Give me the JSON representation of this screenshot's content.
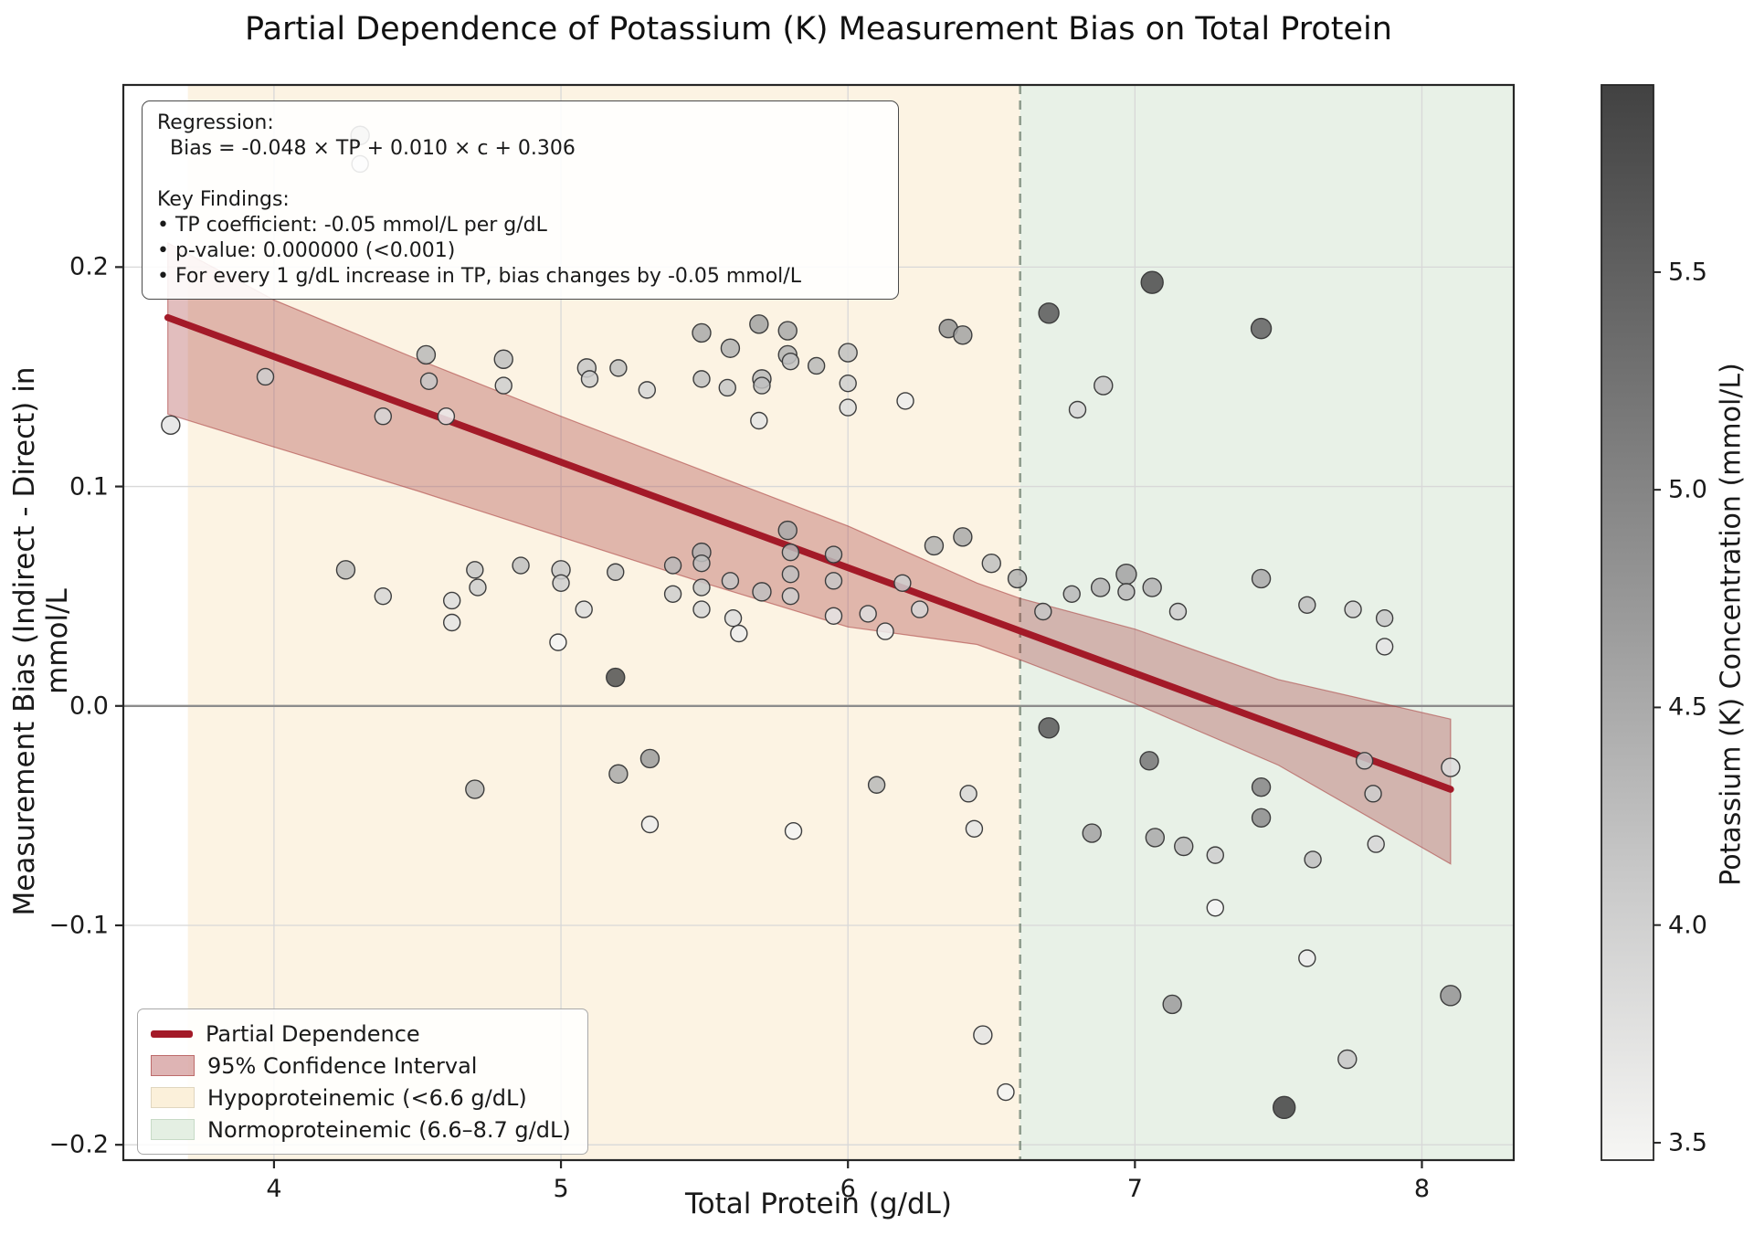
{
  "title": "Partial Dependence of Potassium (K) Measurement Bias on Total Protein",
  "axes": {
    "xlabel": "Total Protein (g/dL)",
    "ylabel": "Measurement Bias (Indirect - Direct) in mmol/L",
    "x_ticks": [
      4,
      5,
      6,
      7,
      8
    ],
    "x_tick_labels": [
      "4",
      "5",
      "6",
      "7",
      "8"
    ],
    "y_ticks": [
      0.2,
      0.1,
      0.0,
      -0.1,
      -0.2
    ],
    "y_tick_labels": [
      "0.2",
      "0.1",
      "0.0",
      "−0.1",
      "−0.2"
    ],
    "grid": true
  },
  "annotation": {
    "lines": [
      "Regression:",
      "  Bias = -0.048 × TP + 0.010 × c + 0.306",
      "",
      "Key Findings:",
      "• TP coefficient: -0.05 mmol/L per g/dL",
      "• p-value: 0.000000 (<0.001)",
      "• For every 1 g/dL increase in TP, bias changes by -0.05 mmol/L"
    ]
  },
  "legend": {
    "items": [
      {
        "label": "Partial Dependence",
        "swatch": "line",
        "color": "#a31a28"
      },
      {
        "label": "95% Confidence Interval",
        "swatch": "patch",
        "color": "rgba(167,58,58,0.38)",
        "border": "rgba(167,58,58,0.6)"
      },
      {
        "label": "Hypoproteinemic (<6.6 g/dL)",
        "swatch": "patch",
        "color": "#fbf0da",
        "border": "#e0d6bf"
      },
      {
        "label": "Normoproteinemic (6.6–8.7 g/dL)",
        "swatch": "patch",
        "color": "#e4efe3",
        "border": "#c7dac6"
      }
    ]
  },
  "colorbar": {
    "label": "Potassium (K) Concentration (mmol/L)",
    "tick_values": [
      5.5,
      5.0,
      4.5,
      4.0,
      3.5
    ],
    "tick_labels": [
      "5.5",
      "5.0",
      "4.5",
      "4.0",
      "3.5"
    ],
    "min": 3.46,
    "max": 5.93,
    "top_color": "#424242",
    "bottom_color": "#f6f6f4"
  },
  "chart_data": {
    "type": "scatter",
    "title": "Partial Dependence of Potassium (K) Measurement Bias on Total Protein",
    "xlabel": "Total Protein (g/dL)",
    "ylabel": "Measurement Bias (Indirect - Direct) in mmol/L",
    "xlim": [
      3.475,
      8.32
    ],
    "ylim": [
      -0.207,
      0.283
    ],
    "zero_line_y": 0.0,
    "threshold_x": 6.6,
    "regions": {
      "hypoproteinemic": {
        "from": 3.7,
        "to": 6.6,
        "color": "#fcf3e3",
        "label": "Hypoproteinemic (<6.6 g/dL)"
      },
      "normoproteinemic": {
        "from": 6.6,
        "to": 8.32,
        "color": "#e8f1e7",
        "label": "Normoproteinemic (6.6–8.7 g/dL)"
      }
    },
    "regression": {
      "slope_per_gdl": -0.048,
      "k_coefficient": 0.01,
      "intercept": 0.306,
      "p_value": "<0.001",
      "line": {
        "x": [
          3.63,
          8.1
        ],
        "y": [
          0.177,
          -0.038
        ]
      }
    },
    "confidence_band": [
      [
        3.63,
        0.133,
        0.211
      ],
      [
        4.0,
        0.118,
        0.185
      ],
      [
        4.5,
        0.098,
        0.158
      ],
      [
        5.0,
        0.077,
        0.132
      ],
      [
        5.5,
        0.056,
        0.107
      ],
      [
        6.0,
        0.036,
        0.082
      ],
      [
        6.45,
        0.028,
        0.056
      ],
      [
        6.6,
        0.021,
        0.049
      ],
      [
        7.0,
        0.001,
        0.035
      ],
      [
        7.5,
        -0.027,
        0.012
      ],
      [
        8.1,
        -0.072,
        -0.006
      ]
    ],
    "points_format": [
      "total_protein_gdl",
      "bias_mmolL",
      "potassium_mmolL",
      "radius_px"
    ],
    "points": [
      [
        4.3,
        0.26,
        4.3,
        10
      ],
      [
        4.3,
        0.247,
        3.6,
        9
      ],
      [
        3.64,
        0.128,
        3.7,
        10
      ],
      [
        3.97,
        0.15,
        4.0,
        9
      ],
      [
        4.38,
        0.132,
        3.9,
        9
      ],
      [
        4.53,
        0.16,
        4.3,
        10
      ],
      [
        4.54,
        0.148,
        4.1,
        9
      ],
      [
        4.6,
        0.132,
        3.6,
        9
      ],
      [
        4.8,
        0.158,
        4.2,
        10
      ],
      [
        4.8,
        0.146,
        4.0,
        9
      ],
      [
        5.09,
        0.154,
        4.1,
        10
      ],
      [
        5.1,
        0.149,
        4.0,
        9
      ],
      [
        5.2,
        0.154,
        4.2,
        9
      ],
      [
        5.3,
        0.144,
        3.9,
        9
      ],
      [
        5.49,
        0.17,
        4.5,
        10
      ],
      [
        5.49,
        0.149,
        4.2,
        9
      ],
      [
        5.58,
        0.145,
        4.1,
        9
      ],
      [
        5.59,
        0.163,
        4.4,
        10
      ],
      [
        5.69,
        0.174,
        4.6,
        10
      ],
      [
        5.69,
        0.13,
        3.7,
        9
      ],
      [
        5.7,
        0.149,
        4.3,
        10
      ],
      [
        5.7,
        0.146,
        4.2,
        9
      ],
      [
        5.79,
        0.171,
        4.5,
        10
      ],
      [
        5.79,
        0.16,
        4.4,
        10
      ],
      [
        5.8,
        0.157,
        4.2,
        9
      ],
      [
        5.89,
        0.155,
        4.3,
        9
      ],
      [
        6.0,
        0.161,
        4.2,
        10
      ],
      [
        6.0,
        0.147,
        4.0,
        9
      ],
      [
        6.0,
        0.136,
        3.8,
        9
      ],
      [
        6.2,
        0.139,
        3.6,
        9
      ],
      [
        6.35,
        0.172,
        4.8,
        10
      ],
      [
        6.4,
        0.169,
        4.6,
        10
      ],
      [
        6.8,
        0.135,
        3.9,
        9
      ],
      [
        6.89,
        0.146,
        4.1,
        10
      ],
      [
        6.7,
        0.179,
        5.6,
        11
      ],
      [
        7.06,
        0.193,
        5.8,
        12
      ],
      [
        7.44,
        0.172,
        5.5,
        11
      ],
      [
        4.25,
        0.062,
        4.3,
        10
      ],
      [
        4.38,
        0.05,
        3.9,
        9
      ],
      [
        4.62,
        0.048,
        3.8,
        9
      ],
      [
        4.62,
        0.038,
        3.7,
        9
      ],
      [
        4.7,
        0.062,
        4.1,
        9
      ],
      [
        4.71,
        0.054,
        4.0,
        9
      ],
      [
        4.86,
        0.064,
        4.2,
        9
      ],
      [
        5.0,
        0.062,
        4.1,
        10
      ],
      [
        5.0,
        0.056,
        4.0,
        9
      ],
      [
        5.08,
        0.044,
        3.8,
        9
      ],
      [
        4.99,
        0.029,
        3.5,
        9
      ],
      [
        5.19,
        0.061,
        4.2,
        9
      ],
      [
        5.39,
        0.064,
        4.3,
        9
      ],
      [
        5.39,
        0.051,
        4.0,
        9
      ],
      [
        5.49,
        0.07,
        4.4,
        10
      ],
      [
        5.49,
        0.065,
        4.2,
        9
      ],
      [
        5.49,
        0.054,
        4.1,
        9
      ],
      [
        5.49,
        0.044,
        3.9,
        9
      ],
      [
        5.59,
        0.057,
        4.1,
        9
      ],
      [
        5.6,
        0.04,
        3.8,
        9
      ],
      [
        5.62,
        0.033,
        3.6,
        9
      ],
      [
        5.7,
        0.052,
        4.2,
        10
      ],
      [
        5.79,
        0.08,
        4.5,
        10
      ],
      [
        5.8,
        0.07,
        4.3,
        9
      ],
      [
        5.8,
        0.06,
        4.2,
        9
      ],
      [
        5.8,
        0.05,
        4.0,
        9
      ],
      [
        5.95,
        0.069,
        4.3,
        9
      ],
      [
        5.95,
        0.057,
        4.1,
        9
      ],
      [
        5.95,
        0.041,
        3.7,
        9
      ],
      [
        6.07,
        0.042,
        3.8,
        9
      ],
      [
        6.13,
        0.034,
        3.6,
        9
      ],
      [
        6.19,
        0.056,
        4.0,
        9
      ],
      [
        6.25,
        0.044,
        3.9,
        9
      ],
      [
        6.3,
        0.073,
        4.4,
        10
      ],
      [
        6.4,
        0.077,
        4.5,
        10
      ],
      [
        6.5,
        0.065,
        4.2,
        10
      ],
      [
        5.19,
        0.013,
        5.7,
        10
      ],
      [
        6.59,
        0.058,
        4.4,
        10
      ],
      [
        6.68,
        0.043,
        4.1,
        9
      ],
      [
        6.78,
        0.051,
        4.3,
        9
      ],
      [
        6.88,
        0.054,
        4.4,
        10
      ],
      [
        6.97,
        0.06,
        4.6,
        11
      ],
      [
        6.97,
        0.052,
        4.3,
        9
      ],
      [
        7.06,
        0.054,
        4.4,
        10
      ],
      [
        7.15,
        0.043,
        4.0,
        9
      ],
      [
        7.44,
        0.058,
        4.5,
        10
      ],
      [
        7.6,
        0.046,
        4.2,
        9
      ],
      [
        7.76,
        0.044,
        4.0,
        9
      ],
      [
        7.87,
        0.04,
        4.1,
        9
      ],
      [
        7.87,
        0.027,
        3.7,
        9
      ],
      [
        6.7,
        -0.01,
        5.6,
        11
      ],
      [
        7.05,
        -0.025,
        5.2,
        10
      ],
      [
        6.42,
        -0.04,
        3.9,
        9
      ],
      [
        6.44,
        -0.056,
        3.7,
        9
      ],
      [
        6.85,
        -0.058,
        4.6,
        10
      ],
      [
        7.07,
        -0.06,
        4.5,
        10
      ],
      [
        7.17,
        -0.064,
        4.3,
        10
      ],
      [
        7.28,
        -0.068,
        4.0,
        9
      ],
      [
        7.44,
        -0.037,
        5.0,
        10
      ],
      [
        7.44,
        -0.051,
        4.9,
        10
      ],
      [
        7.62,
        -0.07,
        4.2,
        9
      ],
      [
        7.8,
        -0.025,
        4.1,
        9
      ],
      [
        7.83,
        -0.04,
        4.0,
        9
      ],
      [
        7.84,
        -0.063,
        3.9,
        9
      ],
      [
        7.28,
        -0.092,
        3.5,
        9
      ],
      [
        8.1,
        -0.028,
        3.8,
        10
      ],
      [
        4.7,
        -0.038,
        4.4,
        10
      ],
      [
        5.2,
        -0.031,
        4.5,
        10
      ],
      [
        5.31,
        -0.024,
        4.7,
        10
      ],
      [
        5.31,
        -0.054,
        3.6,
        9
      ],
      [
        5.81,
        -0.057,
        3.5,
        9
      ],
      [
        6.1,
        -0.036,
        4.3,
        9
      ],
      [
        6.47,
        -0.15,
        3.7,
        10
      ],
      [
        6.55,
        -0.176,
        3.5,
        9
      ],
      [
        7.13,
        -0.136,
        4.7,
        10
      ],
      [
        7.52,
        -0.183,
        5.9,
        12
      ],
      [
        7.6,
        -0.115,
        3.6,
        9
      ],
      [
        7.74,
        -0.161,
        4.1,
        10
      ],
      [
        8.1,
        -0.132,
        4.8,
        11
      ]
    ],
    "legend_position": "lower left",
    "colorbar_range_note": "gray colormap, dark = high K"
  }
}
